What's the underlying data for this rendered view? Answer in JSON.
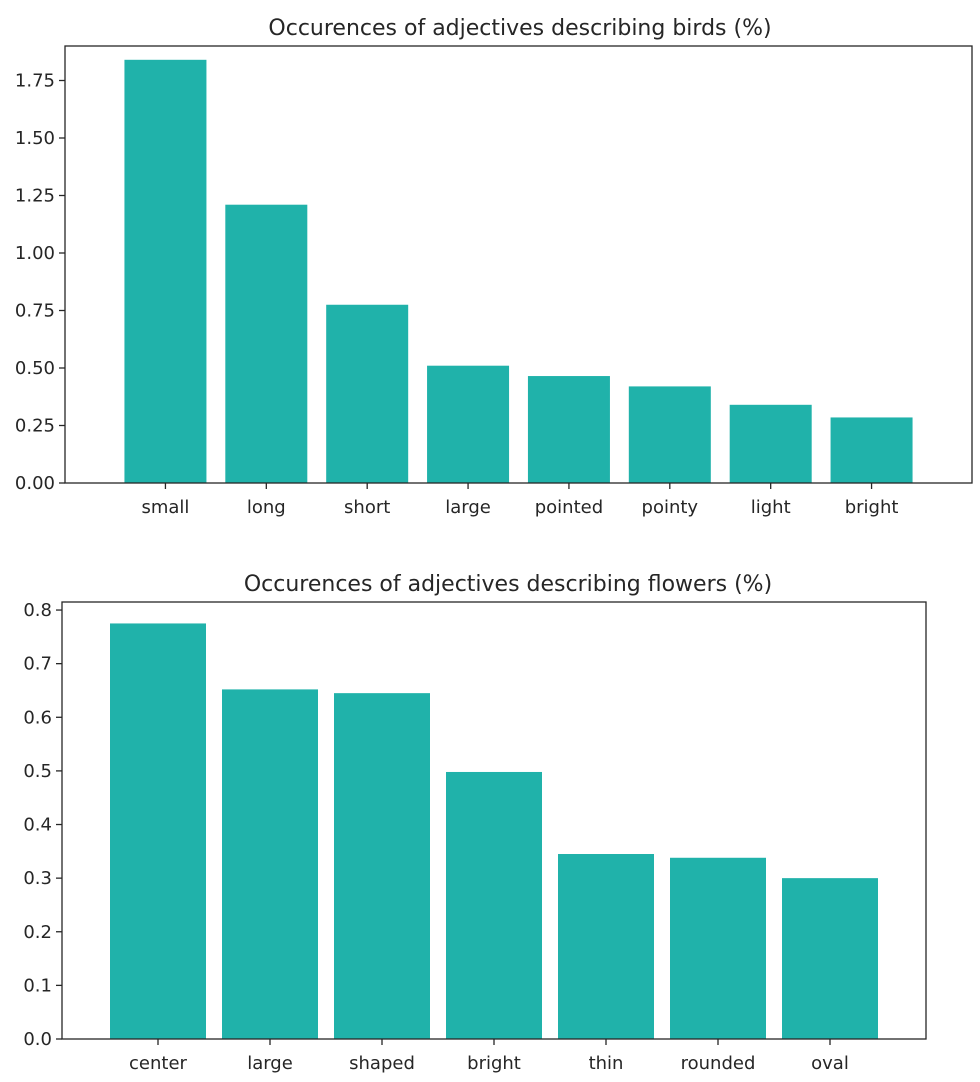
{
  "chart_data": [
    {
      "type": "bar",
      "title": "Occurences of adjectives describing birds (%)",
      "xlabel": "",
      "ylabel": "",
      "categories": [
        "small",
        "long",
        "short",
        "large",
        "pointed",
        "pointy",
        "light",
        "bright"
      ],
      "values": [
        1.84,
        1.21,
        0.775,
        0.51,
        0.465,
        0.42,
        0.34,
        0.285
      ],
      "ylim": [
        0,
        1.9
      ],
      "yticks": [
        "0.00",
        "0.25",
        "0.50",
        "0.75",
        "1.00",
        "1.25",
        "1.50",
        "1.75"
      ],
      "bar_color": "#20b2aa",
      "grid": false
    },
    {
      "type": "bar",
      "title": "Occurences of adjectives describing flowers (%)",
      "xlabel": "",
      "ylabel": "",
      "categories": [
        "center",
        "large",
        "shaped",
        "bright",
        "thin",
        "rounded",
        "oval"
      ],
      "values": [
        0.775,
        0.652,
        0.645,
        0.498,
        0.345,
        0.338,
        0.3
      ],
      "ylim": [
        0,
        0.815
      ],
      "yticks": [
        "0.0",
        "0.1",
        "0.2",
        "0.3",
        "0.4",
        "0.5",
        "0.6",
        "0.7",
        "0.8"
      ],
      "bar_color": "#20b2aa",
      "grid": false
    }
  ]
}
